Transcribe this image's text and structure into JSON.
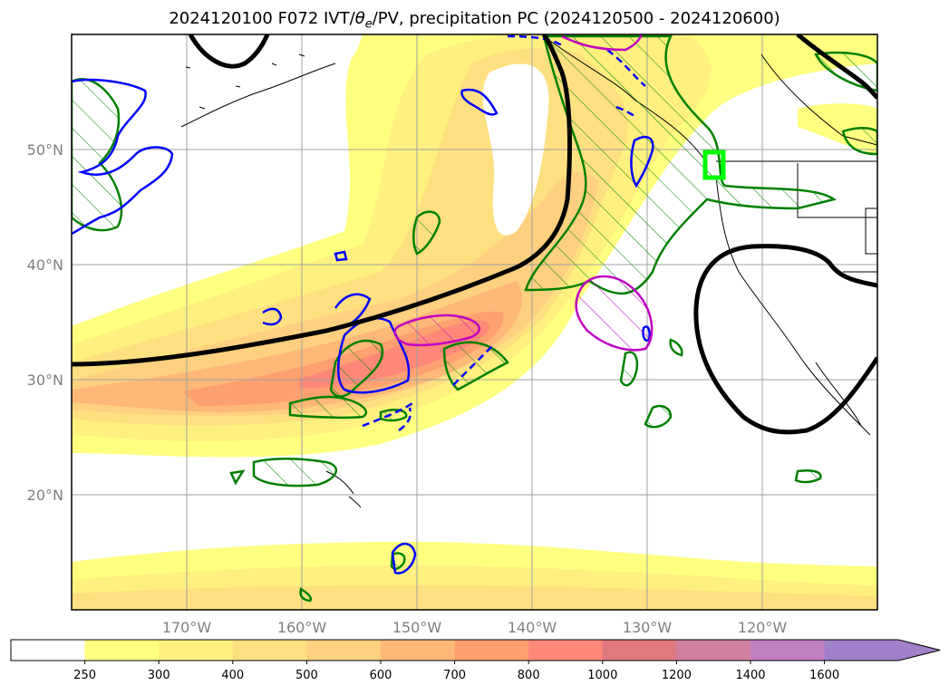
{
  "title": {
    "prefix": "2024120100 F072 IVT/",
    "theta_symbol": "θ",
    "theta_sub": "e",
    "suffix": "/PV, precipitation PC (2024120500 - 2024120600)"
  },
  "map": {
    "lat_labels": [
      "50°N",
      "40°N",
      "30°N",
      "20°N"
    ],
    "lon_labels": [
      "170°W",
      "160°W",
      "150°W",
      "140°W",
      "130°W",
      "120°W"
    ]
  },
  "colorbar": {
    "ticks": [
      "250",
      "300",
      "400",
      "500",
      "600",
      "700",
      "800",
      "1000",
      "1200",
      "1400",
      "1600"
    ],
    "colors": [
      "#ffffff",
      "#ffff80",
      "#fff080",
      "#ffe080",
      "#ffd080",
      "#ffb878",
      "#ffa070",
      "#ff8878",
      "#e07880",
      "#d080a0",
      "#c080c0",
      "#a080c8"
    ],
    "extend": "max"
  },
  "legend_colors": {
    "theta_e_contour": "#000000",
    "pv_positive": "#0000ff",
    "pv_hatched": "#008000",
    "highlight": "#c000c0",
    "target_box": "#00ff00"
  }
}
